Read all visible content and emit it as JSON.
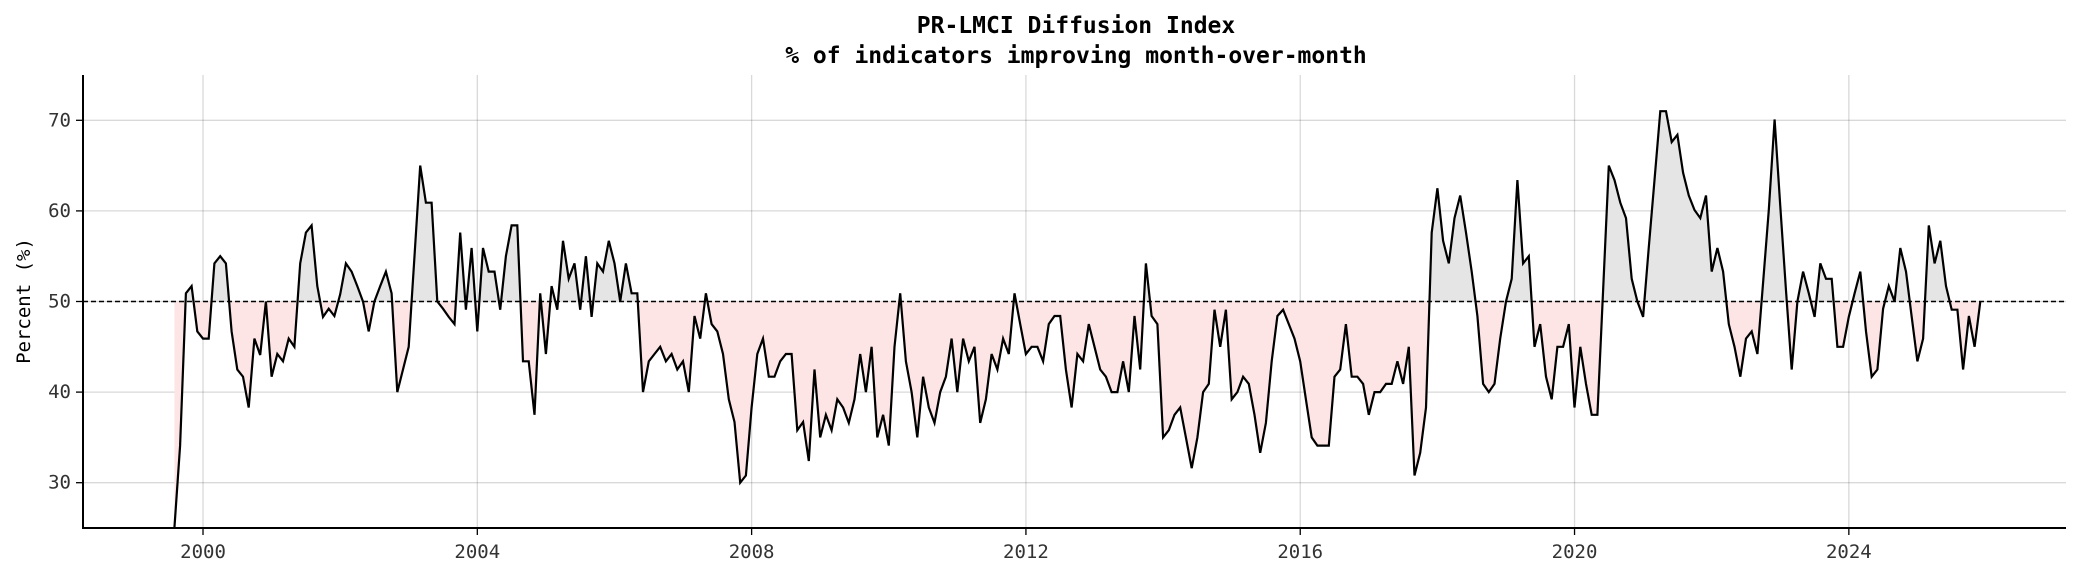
{
  "chart_data": {
    "type": "line",
    "title": "PR-LMCI Diffusion Index",
    "subtitle": "% of indicators improving month-over-month",
    "xlabel": "",
    "ylabel": "Percent (%)",
    "xlim": [
      "1998-04",
      "2027-03"
    ],
    "ylim": [
      25,
      75
    ],
    "yticks": [
      30,
      40,
      50,
      60,
      70
    ],
    "xticks": [
      "2000",
      "2004",
      "2008",
      "2012",
      "2016",
      "2020",
      "2024"
    ],
    "grid": true,
    "reference_line": {
      "value": 50,
      "style": "dashed",
      "color": "#000000"
    },
    "fill_above_color": "#e5e5e5",
    "fill_below_color": "#fde5e5",
    "line_color": "#000000",
    "x": [
      "1999-08",
      "1999-09",
      "1999-10",
      "1999-11",
      "1999-12",
      "2000-01",
      "2000-02",
      "2000-03",
      "2000-04",
      "2000-05",
      "2000-06",
      "2000-07",
      "2000-08",
      "2000-09",
      "2000-10",
      "2000-11",
      "2000-12",
      "2001-01",
      "2001-02",
      "2001-03",
      "2001-04",
      "2001-05",
      "2001-06",
      "2001-07",
      "2001-08",
      "2001-09",
      "2001-10",
      "2001-11",
      "2001-12",
      "2002-01",
      "2002-02",
      "2002-03",
      "2002-04",
      "2002-05",
      "2002-06",
      "2002-07",
      "2002-08",
      "2002-09",
      "2002-10",
      "2002-11",
      "2002-12",
      "2003-01",
      "2003-02",
      "2003-03",
      "2003-04",
      "2003-05",
      "2003-06",
      "2003-07",
      "2003-08",
      "2003-09",
      "2003-10",
      "2003-11",
      "2003-12",
      "2004-01",
      "2004-02",
      "2004-03",
      "2004-04",
      "2004-05",
      "2004-06",
      "2004-07",
      "2004-08",
      "2004-09",
      "2004-10",
      "2004-11",
      "2004-12",
      "2005-01",
      "2005-02",
      "2005-03",
      "2005-04",
      "2005-05",
      "2005-06",
      "2005-07",
      "2005-08",
      "2005-09",
      "2005-10",
      "2005-11",
      "2005-12",
      "2006-01",
      "2006-02",
      "2006-03",
      "2006-04",
      "2006-05",
      "2006-06",
      "2006-07",
      "2006-08",
      "2006-09",
      "2006-10",
      "2006-11",
      "2006-12",
      "2007-01",
      "2007-02",
      "2007-03",
      "2007-04",
      "2007-05",
      "2007-06",
      "2007-07",
      "2007-08",
      "2007-09",
      "2007-10",
      "2007-11",
      "2007-12",
      "2008-01",
      "2008-02",
      "2008-03",
      "2008-04",
      "2008-05",
      "2008-06",
      "2008-07",
      "2008-08",
      "2008-09",
      "2008-10",
      "2008-11",
      "2008-12",
      "2009-01",
      "2009-02",
      "2009-03",
      "2009-04",
      "2009-05",
      "2009-06",
      "2009-07",
      "2009-08",
      "2009-09",
      "2009-10",
      "2009-11",
      "2009-12",
      "2010-01",
      "2010-02",
      "2010-03",
      "2010-04",
      "2010-05",
      "2010-06",
      "2010-07",
      "2010-08",
      "2010-09",
      "2010-10",
      "2010-11",
      "2010-12",
      "2011-01",
      "2011-02",
      "2011-03",
      "2011-04",
      "2011-05",
      "2011-06",
      "2011-07",
      "2011-08",
      "2011-09",
      "2011-10",
      "2011-11",
      "2011-12",
      "2012-01",
      "2012-02",
      "2012-03",
      "2012-04",
      "2012-05",
      "2012-06",
      "2012-07",
      "2012-08",
      "2012-09",
      "2012-10",
      "2012-11",
      "2012-12",
      "2013-01",
      "2013-02",
      "2013-03",
      "2013-04",
      "2013-05",
      "2013-06",
      "2013-07",
      "2013-08",
      "2013-09",
      "2013-10",
      "2013-11",
      "2013-12",
      "2014-01",
      "2014-02",
      "2014-03",
      "2014-04",
      "2014-05",
      "2014-06",
      "2014-07",
      "2014-08",
      "2014-09",
      "2014-10",
      "2014-11",
      "2014-12",
      "2015-01",
      "2015-02",
      "2015-03",
      "2015-04",
      "2015-05",
      "2015-06",
      "2015-07",
      "2015-08",
      "2015-09",
      "2015-10",
      "2015-11",
      "2015-12",
      "2016-01",
      "2016-02",
      "2016-03",
      "2016-04",
      "2016-05",
      "2016-06",
      "2016-07",
      "2016-08",
      "2016-09",
      "2016-10",
      "2016-11",
      "2016-12",
      "2017-01",
      "2017-02",
      "2017-03",
      "2017-04",
      "2017-05",
      "2017-06",
      "2017-07",
      "2017-08",
      "2017-09",
      "2017-10",
      "2017-11",
      "2017-12",
      "2018-01",
      "2018-02",
      "2018-03",
      "2018-04",
      "2018-05",
      "2018-06",
      "2018-07",
      "2018-08",
      "2018-09",
      "2018-10",
      "2018-11",
      "2018-12",
      "2019-01",
      "2019-02",
      "2019-03",
      "2019-04",
      "2019-05",
      "2019-06",
      "2019-07",
      "2019-08",
      "2019-09",
      "2019-10",
      "2019-11",
      "2019-12",
      "2020-01",
      "2020-02",
      "2020-03",
      "2020-04",
      "2020-05",
      "2020-06",
      "2020-07",
      "2020-08",
      "2020-09",
      "2020-10",
      "2020-11",
      "2020-12",
      "2021-01",
      "2021-02",
      "2021-03",
      "2021-04",
      "2021-05",
      "2021-06",
      "2021-07",
      "2021-08",
      "2021-09",
      "2021-10",
      "2021-11",
      "2021-12",
      "2022-01",
      "2022-02",
      "2022-03",
      "2022-04",
      "2022-05",
      "2022-06",
      "2022-07",
      "2022-08",
      "2022-09",
      "2022-10",
      "2022-11",
      "2022-12",
      "2023-01",
      "2023-02",
      "2023-03",
      "2023-04",
      "2023-05",
      "2023-06",
      "2023-07",
      "2023-08",
      "2023-09",
      "2023-10",
      "2023-11",
      "2023-12",
      "2024-01",
      "2024-02",
      "2024-03",
      "2024-04",
      "2024-05",
      "2024-06",
      "2024-07",
      "2024-08",
      "2024-09",
      "2024-10",
      "2024-11",
      "2024-12",
      "2025-01",
      "2025-02",
      "2025-03",
      "2025-04",
      "2025-05",
      "2025-06",
      "2025-07",
      "2025-08",
      "2025-09",
      "2025-10",
      "2025-11",
      "2025-12"
    ],
    "y": [
      25,
      34.1,
      50.9,
      51.7,
      46.7,
      45.9,
      45.9,
      54.2,
      55.0,
      54.2,
      46.7,
      42.5,
      41.7,
      38.3,
      45.9,
      44.1,
      50,
      41.7,
      44.2,
      43.4,
      45.9,
      45.0,
      54.2,
      57.6,
      58.4,
      51.7,
      48.3,
      49.2,
      48.4,
      50.8,
      54.2,
      53.3,
      51.7,
      50,
      46.7,
      50,
      51.7,
      53.3,
      50.9,
      40,
      42.5,
      45,
      55,
      65,
      60.9,
      60.9,
      50,
      49.2,
      48.3,
      47.5,
      57.6,
      49.1,
      55.9,
      46.7,
      55.9,
      53.3,
      53.3,
      49.1,
      55,
      58.4,
      58.4,
      43.4,
      43.4,
      37.5,
      50.9,
      44.2,
      51.7,
      49.1,
      56.7,
      52.5,
      54.2,
      49.1,
      55,
      48.3,
      54.2,
      53.3,
      56.7,
      54.2,
      50,
      54.2,
      50.9,
      50.9,
      40,
      43.4,
      44.2,
      45,
      43.4,
      44.2,
      42.5,
      43.4,
      40,
      48.4,
      45.9,
      50.9,
      47.5,
      46.7,
      44.2,
      39.2,
      36.7,
      30,
      30.8,
      38.3,
      44.2,
      45.9,
      41.7,
      41.7,
      43.4,
      44.2,
      44.2,
      35.8,
      36.7,
      32.4,
      42.5,
      35,
      37.5,
      35.8,
      39.2,
      38.3,
      36.6,
      39.2,
      44.2,
      40,
      45,
      35,
      37.5,
      34.1,
      45,
      50.9,
      43.4,
      40,
      35,
      41.7,
      38.3,
      36.6,
      40,
      41.7,
      45.9,
      40,
      45.9,
      43.4,
      45,
      36.6,
      39.2,
      44.2,
      42.5,
      45.9,
      44.2,
      50.9,
      47.5,
      44.2,
      45,
      45,
      43.4,
      47.5,
      48.4,
      48.4,
      42.5,
      38.3,
      44.2,
      43.4,
      47.5,
      45,
      42.5,
      41.7,
      40,
      40,
      43.4,
      40,
      48.4,
      42.5,
      54.2,
      48.4,
      47.5,
      35,
      35.8,
      37.5,
      38.3,
      35,
      31.6,
      35,
      40,
      40.9,
      49.1,
      45,
      49.1,
      39.2,
      40,
      41.7,
      40.9,
      37.5,
      33.3,
      36.6,
      43.4,
      48.4,
      49.1,
      47.5,
      45.9,
      43.4,
      39.2,
      35,
      34.1,
      34.1,
      34.1,
      41.7,
      42.5,
      47.5,
      41.7,
      41.7,
      40.9,
      37.5,
      40,
      40,
      40.9,
      40.9,
      43.4,
      40.9,
      45,
      30.8,
      33.3,
      38.3,
      57.6,
      62.5,
      56.7,
      54.2,
      59.2,
      61.7,
      57.6,
      53.3,
      48.4,
      40.9,
      40,
      40.9,
      45.9,
      50,
      52.5,
      63.4,
      54.2,
      55,
      45,
      47.5,
      41.7,
      39.2,
      45,
      45,
      47.5,
      38.3,
      45,
      40.9,
      37.5,
      37.5,
      51.2,
      65,
      63.4,
      60.9,
      59.2,
      52.5,
      50,
      48.3,
      56,
      63.4,
      71,
      71,
      67.6,
      68.4,
      64.2,
      61.7,
      60.1,
      59.2,
      61.7,
      53.3,
      55.9,
      53.3,
      47.5,
      45,
      41.7,
      45.9,
      46.7,
      44.2,
      52.1,
      60.1,
      70.1,
      60.5,
      51.2,
      42.5,
      50,
      53.3,
      50.9,
      48.3,
      54.2,
      52.5,
      52.5,
      45,
      45,
      48.3,
      50.9,
      53.3,
      46.7,
      41.7,
      42.5,
      49.2,
      51.7,
      50,
      55.9,
      53.3,
      48.3,
      43.4,
      45.9,
      58.4,
      54.2,
      56.7,
      51.7,
      49.1,
      49.1,
      42.5,
      48.4,
      45,
      50
    ]
  }
}
